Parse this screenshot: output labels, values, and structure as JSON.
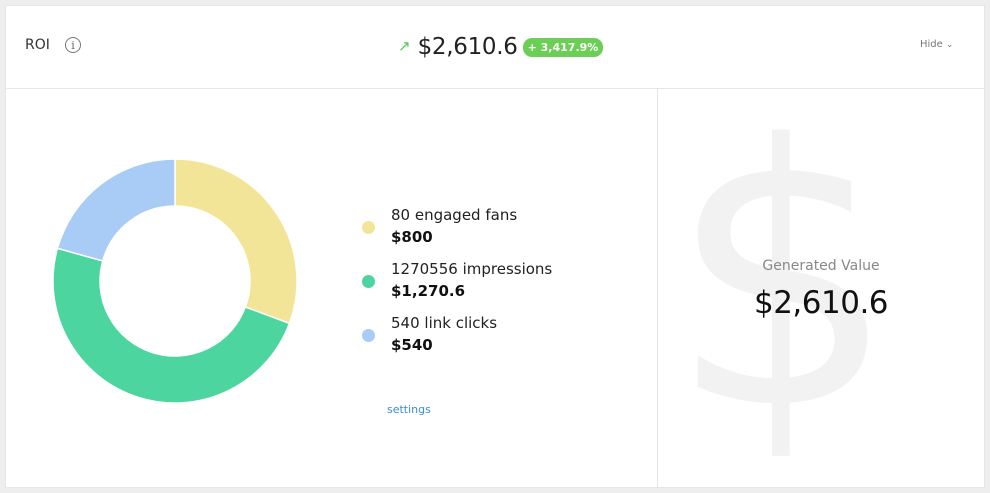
{
  "header": {
    "title": "ROI",
    "info_icon": "i",
    "trend_icon": "↗",
    "value": "$2,610.6",
    "change": "+ 3,417.9%",
    "hide_label": "Hide",
    "chevron": "⌄"
  },
  "chart_data": {
    "type": "pie",
    "series": [
      {
        "name": "80 engaged fans",
        "value": 800,
        "color": "#f2e597"
      },
      {
        "name": "1270556 impressions",
        "value": 1270.6,
        "color": "#4cd59f"
      },
      {
        "name": "540 link clicks",
        "value": 540,
        "color": "#a8ccf5"
      }
    ]
  },
  "legend": [
    {
      "label": "80 engaged fans",
      "amount": "$800",
      "color": "#f2e597"
    },
    {
      "label": "1270556 impressions",
      "amount": "$1,270.6",
      "color": "#4cd59f"
    },
    {
      "label": "540 link clicks",
      "amount": "$540",
      "color": "#a8ccf5"
    }
  ],
  "settings_label": "settings",
  "generated": {
    "watermark": "$",
    "label": "Generated Value",
    "value": "$2,610.6"
  }
}
